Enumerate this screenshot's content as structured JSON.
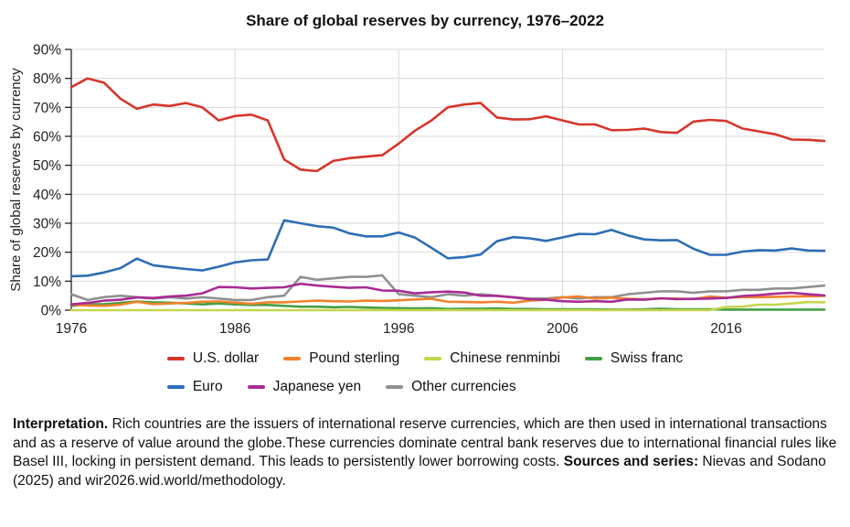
{
  "title": "Share of global reserves by currency, 1976–2022",
  "chart_data": {
    "type": "line",
    "xlim": [
      1976,
      2022
    ],
    "ylim": [
      0,
      90
    ],
    "x_step_years": 1,
    "xticks": [
      1976,
      1986,
      1996,
      2006,
      2016
    ],
    "yticks": [
      "0%",
      "10%",
      "20%",
      "30%",
      "40%",
      "50%",
      "60%",
      "70%",
      "80%",
      "90%"
    ],
    "ylabel": "Share of global reserves by currency",
    "grid": true,
    "grid_color": "#d9d9d9",
    "axis_color": "#222222",
    "legend_position": "bottom",
    "series": [
      {
        "id": "other",
        "name": "Other currencies",
        "color": "#8f9190",
        "values": [
          5.5,
          3.5,
          4.5,
          5.0,
          4.5,
          4.0,
          4.5,
          4.0,
          4.5,
          4.0,
          3.5,
          3.5,
          4.5,
          5.0,
          11.5,
          10.5,
          11.0,
          11.5,
          11.5,
          12.0,
          5.5,
          5.0,
          4.5,
          5.5,
          5.0,
          5.5,
          5.0,
          4.5,
          4.0,
          4.0,
          4.5,
          4.0,
          4.5,
          4.5,
          5.5,
          6.0,
          6.5,
          6.5,
          6.0,
          6.5,
          6.5,
          7.0,
          7.0,
          7.5,
          7.5,
          8.0,
          8.5
        ]
      },
      {
        "id": "franc",
        "name": "Swiss franc",
        "color": "#449f44",
        "values": [
          1.5,
          2.0,
          2.1,
          2.5,
          3.0,
          2.7,
          2.6,
          2.3,
          2.0,
          2.3,
          2.0,
          1.8,
          1.8,
          1.5,
          1.2,
          1.2,
          1.0,
          1.1,
          0.9,
          0.8,
          0.7,
          0.6,
          0.7,
          0.4,
          0.5,
          0.5,
          0.6,
          0.4,
          0.4,
          0.3,
          0.3,
          0.3,
          0.3,
          0.2,
          0.2,
          0.3,
          0.5,
          0.3,
          0.3,
          0.3,
          0.2,
          0.2,
          0.2,
          0.2,
          0.2,
          0.2,
          0.2
        ]
      },
      {
        "id": "renminbi",
        "name": "Chinese renminbi",
        "color": "#c4d64b",
        "values": [
          0,
          0,
          0,
          0,
          0,
          0,
          0,
          0,
          0,
          0,
          0,
          0,
          0,
          0,
          0,
          0,
          0,
          0,
          0,
          0,
          0,
          0,
          0,
          0,
          0,
          0,
          0,
          0,
          0,
          0,
          0,
          0,
          0,
          0,
          0,
          0,
          0,
          0,
          0,
          0,
          1.1,
          1.2,
          1.9,
          1.9,
          2.3,
          2.8,
          2.7
        ]
      },
      {
        "id": "pound",
        "name": "Pound sterling",
        "color": "#f0822d",
        "values": [
          1.9,
          1.6,
          1.5,
          1.9,
          2.9,
          2.1,
          2.3,
          2.5,
          2.9,
          3.0,
          2.6,
          2.2,
          2.7,
          2.7,
          3.0,
          3.3,
          3.1,
          3.0,
          3.3,
          3.2,
          3.4,
          3.7,
          3.9,
          2.9,
          2.8,
          2.7,
          2.9,
          2.6,
          3.3,
          3.6,
          4.4,
          4.7,
          4.0,
          4.3,
          3.9,
          3.8,
          4.0,
          4.0,
          3.8,
          4.7,
          4.3,
          4.5,
          4.5,
          4.6,
          4.7,
          4.8,
          4.9
        ]
      },
      {
        "id": "yen",
        "name": "Japanese yen",
        "color": "#a82c93",
        "values": [
          2.0,
          2.5,
          3.3,
          3.6,
          4.4,
          4.2,
          4.7,
          5.0,
          5.8,
          8.0,
          7.9,
          7.5,
          7.7,
          7.9,
          9.1,
          8.5,
          8.1,
          7.7,
          7.9,
          6.8,
          6.7,
          5.8,
          6.2,
          6.4,
          6.1,
          5.0,
          4.9,
          4.4,
          3.8,
          3.6,
          3.1,
          2.9,
          3.1,
          2.9,
          3.7,
          3.6,
          4.1,
          3.8,
          3.9,
          4.0,
          4.2,
          4.9,
          5.2,
          5.7,
          6.0,
          5.5,
          5.1
        ]
      },
      {
        "id": "euro",
        "name": "Euro",
        "color": "#2e6db4",
        "values": [
          11.7,
          11.9,
          13.0,
          14.5,
          17.8,
          15.5,
          14.8,
          14.2,
          13.7,
          15.0,
          16.5,
          17.2,
          17.5,
          31.0,
          30.0,
          29.0,
          28.5,
          26.5,
          25.5,
          25.5,
          26.8,
          25.0,
          21.5,
          17.9,
          18.3,
          19.2,
          23.8,
          25.2,
          24.8,
          23.9,
          25.1,
          26.3,
          26.2,
          27.7,
          25.8,
          24.4,
          24.1,
          24.2,
          21.2,
          19.1,
          19.1,
          20.2,
          20.7,
          20.6,
          21.3,
          20.6,
          20.5
        ]
      },
      {
        "id": "usd",
        "name": "U.S. dollar",
        "color": "#d6362c",
        "values": [
          77.0,
          80.0,
          78.5,
          73.0,
          69.5,
          71.0,
          70.5,
          71.5,
          70.0,
          65.5,
          67.0,
          67.5,
          65.5,
          52.0,
          48.5,
          48.0,
          51.5,
          52.5,
          53.0,
          53.5,
          57.5,
          62.0,
          65.5,
          70.0,
          71.0,
          71.5,
          66.5,
          65.8,
          65.9,
          66.9,
          65.5,
          64.1,
          64.1,
          62.1,
          62.2,
          62.7,
          61.5,
          61.2,
          65.1,
          65.7,
          65.3,
          62.7,
          61.7,
          60.7,
          58.9,
          58.8,
          58.4
        ]
      }
    ],
    "legend_rows": [
      [
        "U.S. dollar",
        "Pound sterling",
        "Chinese renminbi",
        "Swiss franc"
      ],
      [
        "Euro",
        "Japanese yen",
        "Other currencies"
      ]
    ]
  },
  "interpretation": {
    "label": "Interpretation.",
    "text": " Rich countries are the issuers of international reserve currencies, which are then used in international transactions and as a reserve of value around the globe.These currencies dominate central bank reserves due to international financial rules like Basel III, locking in persistent demand. This leads to persistently lower borrowing costs. ",
    "sources_label": "Sources and series:",
    "sources_text": " Nievas and Sodano (2025) and wir2026.wid.world/methodology."
  }
}
